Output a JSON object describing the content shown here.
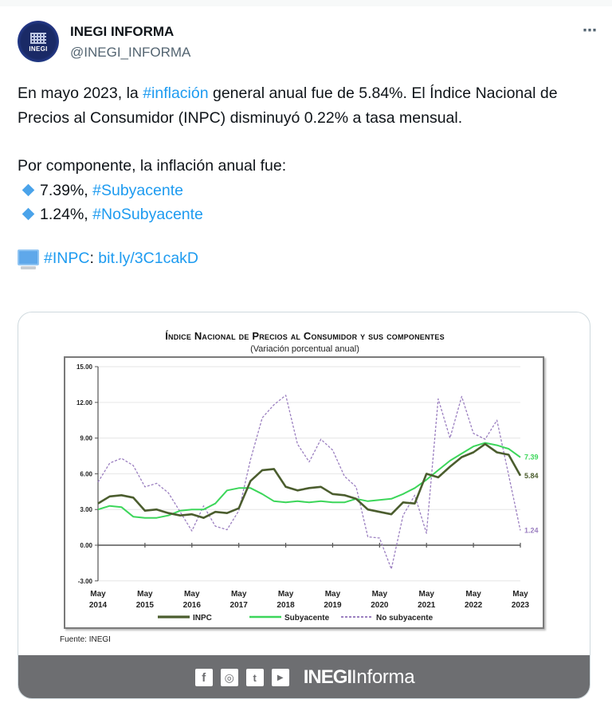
{
  "account": {
    "display_name": "INEGI INFORMA",
    "handle": "@INEGI_INFORMA",
    "avatar_label": "INEGI",
    "more_icon": "⋯"
  },
  "tweet": {
    "line1_pre": "En mayo 2023, la ",
    "line1_hashtag": "#inflación",
    "line1_post": " general anual fue de 5.84%. El Índice Nacional de Precios al Consumidor (INPC) disminuyó 0.22% a tasa mensual.",
    "component_intro": "Por componente, la inflación anual fue:",
    "bullets": [
      {
        "value": "7.39%, ",
        "hashtag": "#Subyacente"
      },
      {
        "value": "1.24%, ",
        "hashtag": "#NoSubyacente"
      }
    ],
    "link_hashtag": "#INPC",
    "link_sep": ": ",
    "link_url": "bit.ly/3C1cakD"
  },
  "card": {
    "source": "Fuente: INEGI",
    "footer_brand_bold": "INEGI",
    "footer_brand_light": "Informa",
    "footer_icons": [
      "facebook-icon",
      "instagram-icon",
      "twitter-icon",
      "youtube-icon"
    ],
    "footer_icon_glyphs": [
      "f",
      "◎",
      "t",
      "▶"
    ]
  },
  "colors": {
    "link": "#1d9bf0",
    "inpc": "#4b5d2e",
    "subyacente": "#3cd65a",
    "no_subyacente": "#9b7fc0",
    "footer_bg": "#6d6e71"
  },
  "chart_data": {
    "type": "line",
    "title": "Índice Nacional de Precios al Consumidor y sus componentes",
    "subtitle": "(Variación porcentual anual)",
    "xlabel": "",
    "ylabel": "",
    "ylim": [
      -3,
      15
    ],
    "yticks": [
      "15.00",
      "12.00",
      "9.00",
      "6.00",
      "3.00",
      "0.00",
      "-3.00"
    ],
    "ytick_values": [
      15,
      12,
      9,
      6,
      3,
      0,
      -3
    ],
    "xticks": [
      {
        "month": "May",
        "year": "2014"
      },
      {
        "month": "May",
        "year": "2015"
      },
      {
        "month": "May",
        "year": "2016"
      },
      {
        "month": "May",
        "year": "2017"
      },
      {
        "month": "May",
        "year": "2018"
      },
      {
        "month": "May",
        "year": "2019"
      },
      {
        "month": "May",
        "year": "2020"
      },
      {
        "month": "May",
        "year": "2021"
      },
      {
        "month": "May",
        "year": "2022"
      },
      {
        "month": "May",
        "year": "2023"
      }
    ],
    "x_step": "quarterly, May 2014 to May 2023",
    "grid": true,
    "legend_position": "bottom",
    "series": [
      {
        "name": "INPC",
        "end_label": "5.84",
        "values": [
          3.5,
          4.1,
          4.2,
          4.0,
          2.9,
          3.0,
          2.7,
          2.5,
          2.6,
          2.3,
          2.8,
          2.7,
          3.1,
          5.4,
          6.3,
          6.4,
          4.9,
          4.6,
          4.8,
          4.9,
          4.3,
          4.2,
          3.9,
          3.0,
          2.8,
          2.6,
          3.6,
          3.5,
          6.0,
          5.7,
          6.6,
          7.4,
          7.8,
          8.5,
          7.8,
          7.6,
          5.84
        ]
      },
      {
        "name": "Subyacente",
        "values": [
          3.0,
          3.3,
          3.2,
          2.4,
          2.3,
          2.3,
          2.5,
          2.9,
          3.0,
          3.0,
          3.5,
          4.6,
          4.8,
          4.8,
          4.3,
          3.7,
          3.6,
          3.7,
          3.6,
          3.7,
          3.6,
          3.6,
          3.9,
          3.7,
          3.8,
          3.9,
          4.3,
          4.8,
          5.5,
          6.3,
          7.1,
          7.7,
          8.3,
          8.6,
          8.4,
          8.1,
          7.39
        ]
      },
      {
        "name": "No subyacente",
        "end_label": "1.24",
        "values": [
          5.3,
          6.9,
          7.3,
          6.7,
          4.9,
          5.2,
          4.4,
          2.8,
          1.2,
          3.3,
          1.6,
          1.3,
          2.9,
          7.2,
          10.7,
          11.8,
          12.6,
          8.5,
          7.0,
          8.9,
          8.0,
          5.8,
          4.9,
          0.7,
          0.6,
          -2.0,
          2.5,
          4.2,
          1.0,
          12.3,
          9.0,
          12.5,
          9.4,
          8.9,
          10.5,
          5.9,
          1.24
        ]
      }
    ]
  }
}
